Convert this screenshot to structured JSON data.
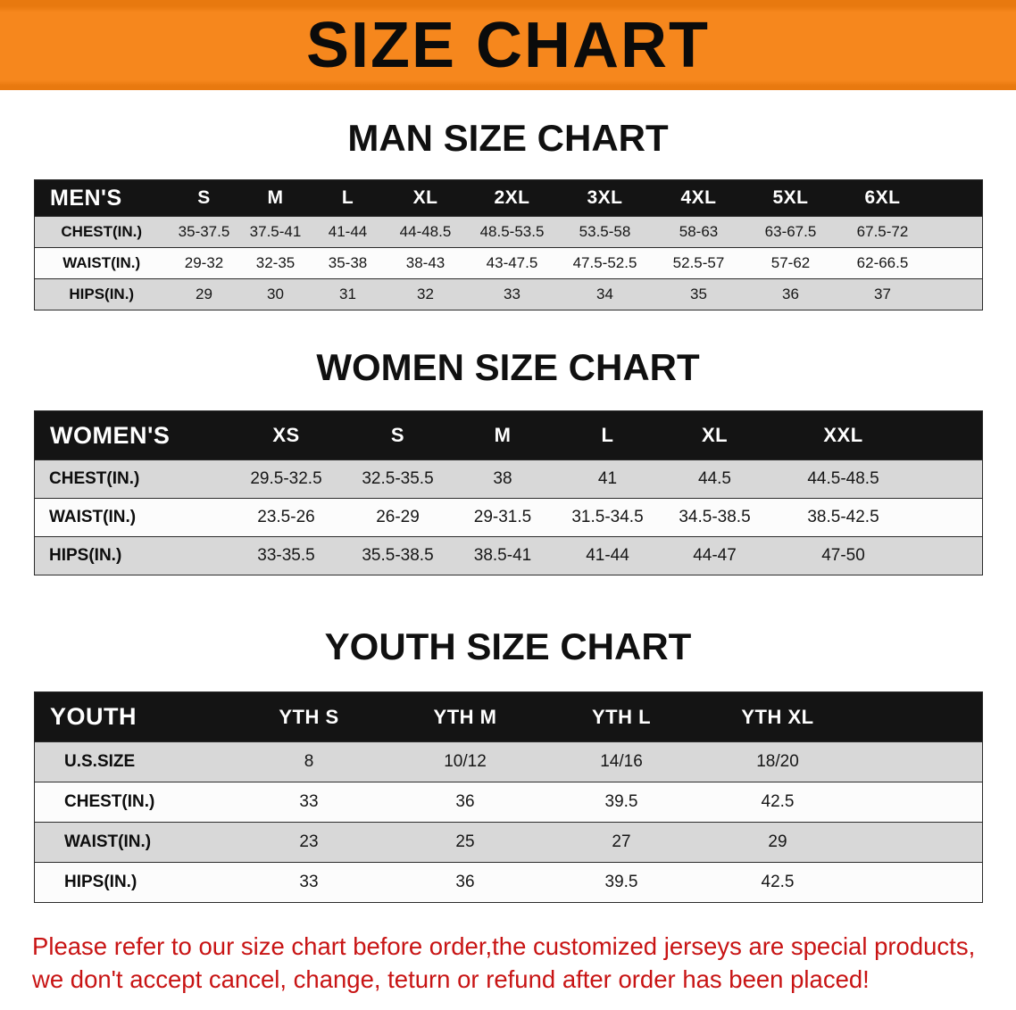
{
  "banner": {
    "title": "SIZE CHART"
  },
  "colors": {
    "banner_orange": "#f6871d",
    "header_bar_black": "#141414",
    "row_gray": "#d8d8d8",
    "notice_red": "#c81414"
  },
  "sections": [
    {
      "id": "men",
      "heading": "MAN SIZE CHART",
      "table": {
        "header": [
          "MEN'S",
          "S",
          "M",
          "L",
          "XL",
          "2XL",
          "3XL",
          "4XL",
          "5XL",
          "6XL"
        ],
        "rows": [
          {
            "label": "CHEST(IN.)",
            "values": [
              "35-37.5",
              "37.5-41",
              "41-44",
              "44-48.5",
              "48.5-53.5",
              "53.5-58",
              "58-63",
              "63-67.5",
              "67.5-72"
            ]
          },
          {
            "label": "WAIST(IN.)",
            "values": [
              "29-32",
              "32-35",
              "35-38",
              "38-43",
              "43-47.5",
              "47.5-52.5",
              "52.5-57",
              "57-62",
              "62-66.5"
            ]
          },
          {
            "label": "HIPS(IN.)",
            "values": [
              "29",
              "30",
              "31",
              "32",
              "33",
              "34",
              "35",
              "36",
              "37"
            ]
          }
        ]
      }
    },
    {
      "id": "women",
      "heading": "WOMEN SIZE CHART",
      "table": {
        "header": [
          "WOMEN'S",
          "XS",
          "S",
          "M",
          "L",
          "XL",
          "XXL"
        ],
        "rows": [
          {
            "label": "CHEST(IN.)",
            "values": [
              "29.5-32.5",
              "32.5-35.5",
              "38",
              "41",
              "44.5",
              "44.5-48.5"
            ]
          },
          {
            "label": "WAIST(IN.)",
            "values": [
              "23.5-26",
              "26-29",
              "29-31.5",
              "31.5-34.5",
              "34.5-38.5",
              "38.5-42.5"
            ]
          },
          {
            "label": "HIPS(IN.)",
            "values": [
              "33-35.5",
              "35.5-38.5",
              "38.5-41",
              "41-44",
              "44-47",
              "47-50"
            ]
          }
        ]
      }
    },
    {
      "id": "youth",
      "heading": "YOUTH SIZE CHART",
      "table": {
        "header": [
          "YOUTH",
          "YTH S",
          "YTH M",
          "YTH L",
          "YTH XL"
        ],
        "rows": [
          {
            "label": "U.S.SIZE",
            "values": [
              "8",
              "10/12",
              "14/16",
              "18/20"
            ]
          },
          {
            "label": "CHEST(IN.)",
            "values": [
              "33",
              "36",
              "39.5",
              "42.5"
            ]
          },
          {
            "label": "WAIST(IN.)",
            "values": [
              "23",
              "25",
              "27",
              "29"
            ]
          },
          {
            "label": "HIPS(IN.)",
            "values": [
              "33",
              "36",
              "39.5",
              "42.5"
            ]
          }
        ]
      }
    }
  ],
  "notice": {
    "line1": "Please refer to our size chart before order,the customized jerseys are special products,",
    "line2": "we don't accept cancel, change, teturn or refund after order has been placed!"
  }
}
